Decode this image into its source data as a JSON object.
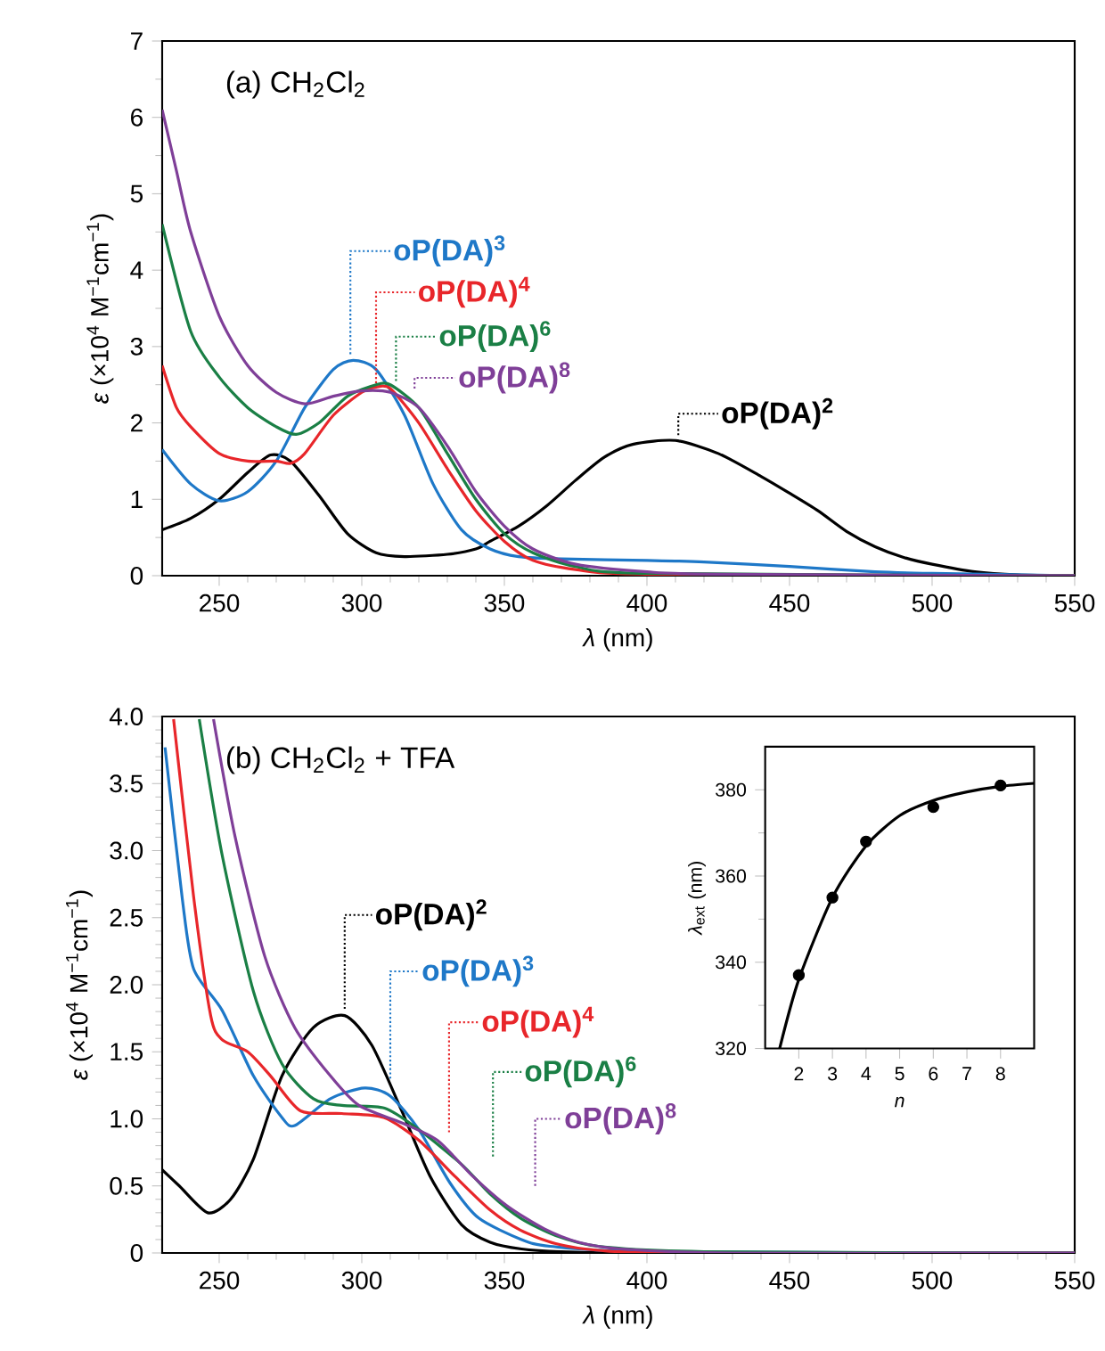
{
  "chart_data": [
    {
      "type": "line",
      "legend": "right",
      "title": "(a) CH$_{2}$Cl$_{2}$",
      "xlabel": "*λ* (nm)",
      "ylabel": "*ε* (×10$^{4}$ M$^{−1}$cm$^{−1}$)",
      "xlim": [
        230,
        550
      ],
      "ylim": [
        0,
        7
      ],
      "xticks": [
        250,
        300,
        350,
        400,
        450,
        500,
        550
      ],
      "yticks": [
        0,
        1,
        2,
        3,
        4,
        5,
        6,
        7
      ],
      "series": [
        {
          "name": "oP(DA)$^{2}$",
          "color": "#000000",
          "x": [
            230,
            240,
            250,
            260,
            268,
            275,
            285,
            295,
            305,
            315,
            330,
            340,
            345,
            355,
            365,
            375,
            385,
            395,
            410,
            425,
            440,
            450,
            460,
            470,
            480,
            490,
            500,
            515,
            530,
            550
          ],
          "values": [
            0.6,
            0.75,
            1.0,
            1.35,
            1.58,
            1.5,
            1.05,
            0.55,
            0.3,
            0.25,
            0.28,
            0.35,
            0.45,
            0.65,
            0.92,
            1.25,
            1.55,
            1.72,
            1.77,
            1.6,
            1.3,
            1.08,
            0.85,
            0.58,
            0.38,
            0.24,
            0.15,
            0.05,
            0.01,
            0
          ]
        },
        {
          "name": "oP(DA)$^{3}$",
          "color": "#1e78c8",
          "x": [
            230,
            240,
            250,
            260,
            270,
            280,
            290,
            297,
            305,
            315,
            325,
            335,
            345,
            355,
            370,
            400,
            420,
            450,
            480,
            500,
            550
          ],
          "values": [
            1.65,
            1.2,
            0.98,
            1.1,
            1.5,
            2.2,
            2.7,
            2.82,
            2.7,
            2.1,
            1.2,
            0.6,
            0.35,
            0.25,
            0.22,
            0.2,
            0.18,
            0.12,
            0.05,
            0.03,
            0
          ]
        },
        {
          "name": "oP(DA)$^{4}$",
          "color": "#e8262a",
          "x": [
            230,
            235,
            240,
            250,
            260,
            270,
            275,
            280,
            290,
            300,
            305,
            310,
            320,
            330,
            340,
            350,
            360,
            375,
            400,
            550
          ],
          "values": [
            2.75,
            2.2,
            1.95,
            1.6,
            1.5,
            1.5,
            1.47,
            1.6,
            2.1,
            2.4,
            2.47,
            2.45,
            2.0,
            1.4,
            0.85,
            0.45,
            0.2,
            0.08,
            0.02,
            0
          ]
        },
        {
          "name": "oP(DA)$^{6}$",
          "color": "#1a7f45",
          "x": [
            230,
            240,
            250,
            260,
            270,
            277,
            285,
            295,
            305,
            310,
            320,
            330,
            340,
            350,
            360,
            375,
            400,
            550
          ],
          "values": [
            4.6,
            3.2,
            2.6,
            2.2,
            1.95,
            1.85,
            2.0,
            2.35,
            2.5,
            2.5,
            2.2,
            1.6,
            1.0,
            0.55,
            0.3,
            0.12,
            0.03,
            0
          ]
        },
        {
          "name": "oP(DA)$^{8}$",
          "color": "#7f3f98",
          "x": [
            230,
            235,
            240,
            250,
            260,
            270,
            280,
            290,
            300,
            310,
            320,
            330,
            340,
            350,
            360,
            375,
            400,
            425,
            550
          ],
          "values": [
            6.1,
            5.3,
            4.5,
            3.4,
            2.75,
            2.4,
            2.25,
            2.35,
            2.42,
            2.4,
            2.2,
            1.7,
            1.1,
            0.65,
            0.35,
            0.15,
            0.05,
            0.02,
            0
          ]
        }
      ]
    },
    {
      "type": "line",
      "title": "(b) CH$_{2}$Cl$_{2}$ + TFA",
      "xlabel": "*λ* (nm)",
      "ylabel": "*ε* (×10$^{4}$ M$^{−1}$cm$^{−1}$)",
      "xlim": [
        230,
        550
      ],
      "ylim": [
        0,
        4
      ],
      "xticks": [
        250,
        300,
        350,
        400,
        450,
        500,
        550
      ],
      "yticks": [
        0,
        0.5,
        {
          "value": 1,
          "label": "1.0"
        },
        1.5,
        {
          "value": 2,
          "label": "2.0"
        },
        2.5,
        {
          "value": 3,
          "label": "3.0"
        },
        3.5,
        {
          "value": 4,
          "label": "4.0"
        }
      ],
      "series": [
        {
          "name": "oP(DA)$^{2}$",
          "color": "#000000",
          "x": [
            230,
            236,
            246,
            254,
            262,
            272,
            283,
            294,
            303.5,
            314,
            324,
            335,
            345,
            356,
            370,
            400,
            550
          ],
          "values": [
            0.62,
            0.5,
            0.3,
            0.4,
            0.7,
            1.32,
            1.68,
            1.77,
            1.55,
            1.06,
            0.57,
            0.21,
            0.08,
            0.03,
            0.01,
            0,
            0
          ]
        },
        {
          "name": "oP(DA)$^{3}$",
          "color": "#1e78c8",
          "x": [
            231,
            237,
            241,
            251,
            262,
            272,
            276.5,
            289,
            301,
            310,
            320,
            331,
            341,
            356,
            366,
            400,
            550
          ],
          "values": [
            3.77,
            2.65,
            2.12,
            1.81,
            1.32,
            1.01,
            0.95,
            1.15,
            1.23,
            1.17,
            0.92,
            0.52,
            0.26,
            0.1,
            0.05,
            0.01,
            0
          ]
        },
        {
          "name": "oP(DA)$^{4}$",
          "color": "#e8262a",
          "x": [
            234,
            241,
            247,
            251,
            260,
            268,
            278.5,
            293,
            307.7,
            320,
            332.7,
            345,
            355.6,
            368,
            383,
            410,
            550
          ],
          "values": [
            3.98,
            2.66,
            1.77,
            1.59,
            1.5,
            1.32,
            1.06,
            1.04,
            1.01,
            0.84,
            0.57,
            0.32,
            0.17,
            0.07,
            0.02,
            0,
            0
          ]
        },
        {
          "name": "oP(DA)$^{6}$",
          "color": "#1a7f45",
          "x": [
            243,
            251,
            262,
            272,
            283,
            293,
            308,
            320,
            335,
            345,
            355.6,
            368,
            383,
            420,
            550
          ],
          "values": [
            3.98,
            2.97,
            1.95,
            1.41,
            1.15,
            1.1,
            1.08,
            0.92,
            0.66,
            0.44,
            0.26,
            0.13,
            0.05,
            0.01,
            0
          ]
        },
        {
          "name": "oP(DA)$^{8}$",
          "color": "#7f3f98",
          "x": [
            248,
            255.6,
            266,
            276.5,
            289,
            299,
            314,
            326.5,
            339,
            351,
            364,
            376,
            391,
            430,
            550
          ],
          "values": [
            3.98,
            3.1,
            2.21,
            1.68,
            1.32,
            1.1,
            0.97,
            0.84,
            0.57,
            0.35,
            0.18,
            0.08,
            0.03,
            0,
            0
          ]
        }
      ]
    },
    {
      "type": "scatter",
      "xlabel": "*n*",
      "ylabel": "*λ*$_{ext}$ (nm)",
      "xlim": [
        1,
        9
      ],
      "ylim": [
        320,
        390
      ],
      "xticks": [
        2,
        3,
        4,
        5,
        6,
        7,
        8
      ],
      "yticks": [
        320,
        340,
        360,
        380
      ],
      "series": [
        {
          "type": "scatter",
          "marker": "circle",
          "color": "#000000",
          "x": [
            2,
            3,
            4,
            6,
            8
          ],
          "values": [
            337,
            355,
            368,
            376,
            381
          ]
        },
        {
          "type": "line",
          "color": "#000000",
          "x": [
            1.43,
            2,
            3,
            4,
            5,
            6,
            7,
            8,
            9
          ],
          "values": [
            320,
            336,
            355,
            367,
            374,
            377.5,
            379.5,
            380.8,
            381.5
          ]
        }
      ]
    }
  ]
}
